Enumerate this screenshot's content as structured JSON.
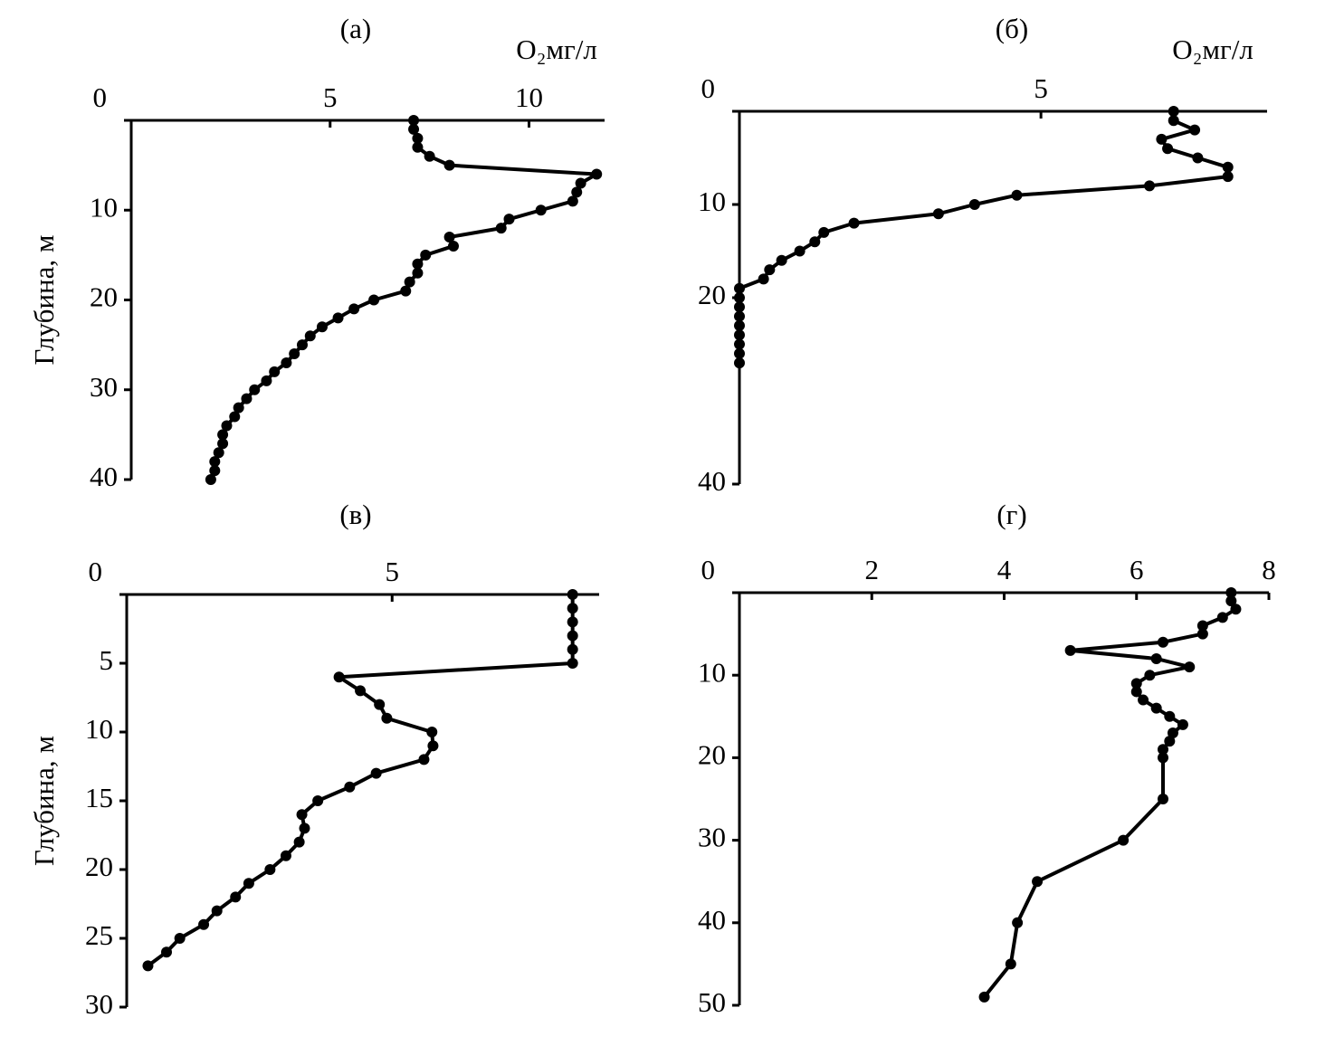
{
  "chart_data": [
    {
      "type": "line",
      "title": "(а)",
      "xlabel": "O₂мг/л",
      "ylabel": "Глубина, м",
      "color": "#000000",
      "xlim": [
        0,
        11.9
      ],
      "xticks": [
        5,
        10
      ],
      "ylim": [
        0,
        40
      ],
      "yticks": [
        0,
        10,
        20,
        30,
        40
      ],
      "y_inverted": true,
      "x": [
        7.1,
        7.1,
        7.2,
        7.2,
        7.5,
        8.0,
        11.7,
        11.3,
        11.2,
        11.1,
        10.3,
        9.5,
        9.3,
        8.0,
        8.1,
        7.4,
        7.2,
        7.2,
        7.0,
        6.9,
        6.1,
        5.6,
        5.2,
        4.8,
        4.5,
        4.3,
        4.1,
        3.9,
        3.6,
        3.4,
        3.1,
        2.9,
        2.7,
        2.6,
        2.4,
        2.3,
        2.3,
        2.2,
        2.1,
        2.1,
        2.0
      ],
      "values": [
        0,
        1,
        2,
        3,
        4,
        5,
        6,
        7,
        8,
        9,
        10,
        11,
        12,
        13,
        14,
        15,
        16,
        17,
        18,
        19,
        20,
        21,
        22,
        23,
        24,
        25,
        26,
        27,
        28,
        29,
        30,
        31,
        32,
        33,
        34,
        35,
        36,
        37,
        38,
        39,
        40
      ]
    },
    {
      "type": "line",
      "title": "(б)",
      "xlabel": "O₂мг/л",
      "color": "#000000",
      "xlim": [
        0,
        8.75
      ],
      "xticks": [
        5
      ],
      "ylim": [
        0,
        40
      ],
      "yticks": [
        0,
        10,
        20,
        40
      ],
      "y_inverted": true,
      "x": [
        7.2,
        7.2,
        7.55,
        7.0,
        7.1,
        7.6,
        8.1,
        8.1,
        6.8,
        4.6,
        3.9,
        3.3,
        1.9,
        1.4,
        1.25,
        1.0,
        0.7,
        0.5,
        0.4,
        0,
        0,
        0,
        0,
        0,
        0,
        0,
        0,
        0
      ],
      "values": [
        0,
        1,
        2,
        3,
        4,
        5,
        6,
        7,
        8,
        9,
        10,
        11,
        12,
        13,
        14,
        15,
        16,
        17,
        18,
        19,
        20,
        21,
        22,
        23,
        24,
        25,
        26,
        27
      ]
    },
    {
      "type": "line",
      "title": "(в)",
      "ylabel": "Глубина, м",
      "color": "#000000",
      "xlim": [
        0,
        8.9
      ],
      "xticks": [
        5
      ],
      "ylim": [
        0,
        30
      ],
      "yticks": [
        0,
        5,
        10,
        15,
        20,
        25,
        30
      ],
      "y_inverted": true,
      "x": [
        8.4,
        8.4,
        8.4,
        8.4,
        8.4,
        8.4,
        4.0,
        4.4,
        4.76,
        4.9,
        5.75,
        5.77,
        5.6,
        4.7,
        4.2,
        3.6,
        3.3,
        3.35,
        3.25,
        3.0,
        2.7,
        2.3,
        2.05,
        1.7,
        1.45,
        1.0,
        0.75,
        0.4
      ],
      "values": [
        0,
        1,
        2,
        3,
        4,
        5,
        6,
        7,
        8,
        9,
        10,
        11,
        12,
        13,
        14,
        15,
        16,
        17,
        18,
        19,
        20,
        21,
        22,
        23,
        24,
        25,
        26,
        27
      ]
    },
    {
      "type": "line",
      "title": "(г)",
      "color": "#000000",
      "xlim": [
        0,
        8
      ],
      "xticks": [
        2,
        4,
        6,
        8
      ],
      "ylim": [
        0,
        50
      ],
      "yticks": [
        0,
        10,
        20,
        30,
        40,
        50
      ],
      "y_inverted": true,
      "x": [
        7.43,
        7.43,
        7.5,
        7.3,
        7.0,
        7.0,
        6.4,
        5.0,
        6.3,
        6.8,
        6.2,
        6.0,
        6.0,
        6.1,
        6.3,
        6.5,
        6.7,
        6.55,
        6.5,
        6.4,
        6.4,
        6.4,
        5.8,
        4.5,
        4.2,
        4.1,
        3.7
      ],
      "values": [
        0,
        1,
        2,
        3,
        4,
        5,
        6,
        7,
        8,
        9,
        10,
        11,
        12,
        13,
        14,
        15,
        16,
        17,
        18,
        19,
        20,
        25,
        30,
        35,
        40,
        45,
        49
      ]
    }
  ]
}
